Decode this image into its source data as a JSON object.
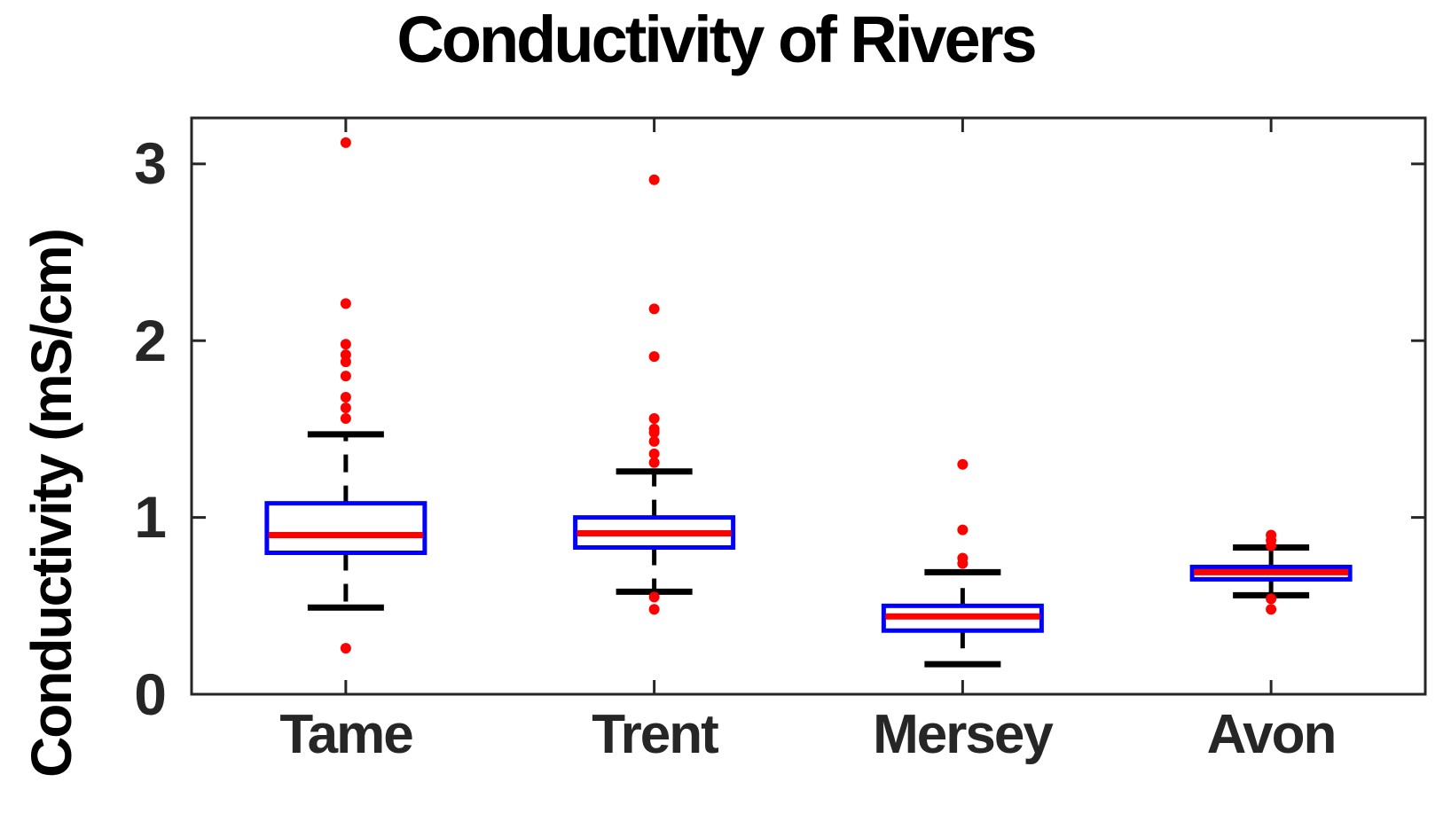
{
  "chart_data": {
    "type": "boxplot",
    "title": "Conductivity of Rivers",
    "ylabel": "Conductivity (mS/cm)",
    "xlabel": "",
    "categories": [
      "Tame",
      "Trent",
      "Mersey",
      "Avon"
    ],
    "ylim": [
      0,
      3.26
    ],
    "yticks": [
      0,
      1,
      2,
      3
    ],
    "grid": false,
    "legend": "none",
    "boxes": [
      {
        "category": "Tame",
        "q1": 0.8,
        "median": 0.9,
        "q3": 1.08,
        "whisker_low": 0.49,
        "whisker_high": 1.47,
        "outliers": [
          3.12,
          2.21,
          1.98,
          1.92,
          1.88,
          1.8,
          1.68,
          1.62,
          1.56,
          0.26
        ]
      },
      {
        "category": "Trent",
        "q1": 0.83,
        "median": 0.91,
        "q3": 1.0,
        "whisker_low": 0.58,
        "whisker_high": 1.26,
        "outliers": [
          2.91,
          2.18,
          1.91,
          1.56,
          1.5,
          1.48,
          1.43,
          1.36,
          1.31,
          0.55,
          0.48
        ]
      },
      {
        "category": "Mersey",
        "q1": 0.36,
        "median": 0.44,
        "q3": 0.5,
        "whisker_low": 0.17,
        "whisker_high": 0.69,
        "outliers": [
          1.3,
          0.93,
          0.77,
          0.74
        ]
      },
      {
        "category": "Avon",
        "q1": 0.65,
        "median": 0.69,
        "q3": 0.72,
        "whisker_low": 0.56,
        "whisker_high": 0.83,
        "outliers": [
          0.9,
          0.87,
          0.84,
          0.54,
          0.48
        ]
      }
    ],
    "colors": {
      "box": "#0000ff",
      "median": "#ff0000",
      "outlier": "#ff0000",
      "whisker": "#000000",
      "axis": "#262626",
      "tick_text": "#262626",
      "title_text": "#000000",
      "background": "#ffffff"
    }
  }
}
